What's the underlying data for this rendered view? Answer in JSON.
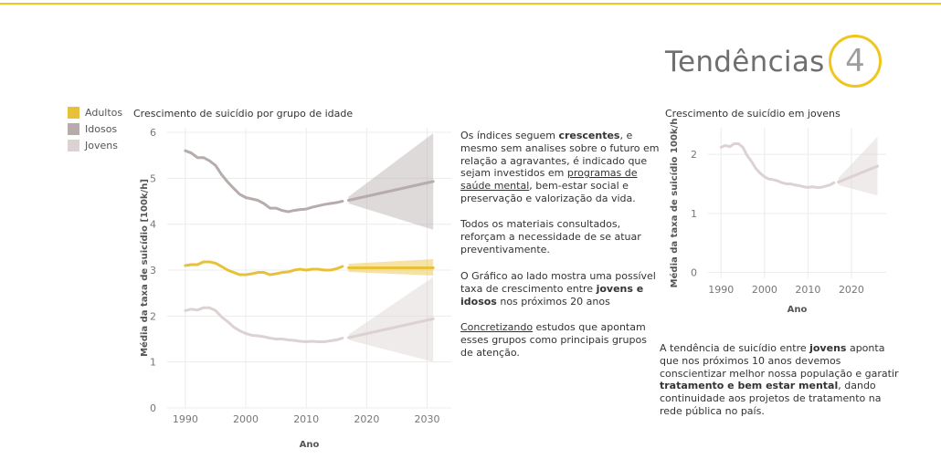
{
  "header": {
    "title": "Tendências",
    "badge": "4",
    "accent": "#f0c61e"
  },
  "legend": [
    {
      "label": "Adultos",
      "color": "#e8c13a"
    },
    {
      "label": "Idosos",
      "color": "#b7acac"
    },
    {
      "label": "Jovens",
      "color": "#dcd2d2"
    }
  ],
  "text_blocks": {
    "p1": [
      {
        "t": "Os índices seguem "
      },
      {
        "t": "crescentes",
        "b": true
      },
      {
        "t": ", e mesmo sem analises sobre o futuro em relação a agravantes, é indicado que sejam investidos em "
      },
      {
        "t": "programas de saúde mental",
        "u": true
      },
      {
        "t": ", bem-estar social e preservação e valorização da vida."
      }
    ],
    "p2": [
      {
        "t": "Todos os materiais consultados, reforçam a necessidade de se atuar preventivamente."
      }
    ],
    "p3": [
      {
        "t": "O Gráfico ao lado mostra uma possível taxa de crescimento entre "
      },
      {
        "t": "jovens e idosos",
        "b": true
      },
      {
        "t": " nos próximos 20 anos"
      }
    ],
    "p4": [
      {
        "t": "Concretizando",
        "u": true
      },
      {
        "t": " estudos que apontam esses grupos como principais grupos de atenção."
      }
    ],
    "p5": [
      {
        "t": "A tendência de suicídio entre "
      },
      {
        "t": "jovens",
        "b": true
      },
      {
        "t": " aponta que nos próximos 10 anos devemos conscientizar melhor nossa população e garatir "
      },
      {
        "t": "tratamento e bem estar mental",
        "b": true
      },
      {
        "t": ", dando continuidade aos projetos de tratamento na rede pública no país."
      }
    ]
  },
  "chart_data": [
    {
      "type": "line",
      "title": "Crescimento de suicídio por grupo de idade",
      "xlabel": "Ano",
      "ylabel": "Média da taxa de suicídio [100k/h]",
      "xlim": [
        1987,
        2034
      ],
      "ylim": [
        0,
        6.1
      ],
      "xticks": [
        1990,
        2000,
        2010,
        2020,
        2030
      ],
      "yticks": [
        0,
        1,
        2,
        3,
        4,
        5,
        6
      ],
      "grid": true,
      "legend": "top-left",
      "series": [
        {
          "name": "Idosos",
          "color": "#b7acac",
          "x": [
            1990,
            1991,
            1992,
            1993,
            1994,
            1995,
            1996,
            1997,
            1998,
            1999,
            2000,
            2001,
            2002,
            2003,
            2004,
            2005,
            2006,
            2007,
            2008,
            2009,
            2010,
            2011,
            2012,
            2013,
            2014,
            2015,
            2016
          ],
          "y": [
            5.6,
            5.55,
            5.45,
            5.45,
            5.38,
            5.28,
            5.08,
            4.92,
            4.78,
            4.65,
            4.58,
            4.55,
            4.52,
            4.45,
            4.35,
            4.35,
            4.3,
            4.27,
            4.3,
            4.32,
            4.33,
            4.37,
            4.4,
            4.43,
            4.45,
            4.47,
            4.5
          ],
          "forecast": {
            "x": [
              2017,
              2031
            ],
            "y": [
              4.52,
              4.93
            ],
            "lower": [
              4.45,
              3.88
            ],
            "upper": [
              4.6,
              5.98
            ]
          }
        },
        {
          "name": "Adultos",
          "color": "#e8c13a",
          "x": [
            1990,
            1991,
            1992,
            1993,
            1994,
            1995,
            1996,
            1997,
            1998,
            1999,
            2000,
            2001,
            2002,
            2003,
            2004,
            2005,
            2006,
            2007,
            2008,
            2009,
            2010,
            2011,
            2012,
            2013,
            2014,
            2015,
            2016
          ],
          "y": [
            3.1,
            3.12,
            3.12,
            3.18,
            3.18,
            3.15,
            3.08,
            3.0,
            2.95,
            2.9,
            2.9,
            2.92,
            2.95,
            2.95,
            2.9,
            2.92,
            2.95,
            2.96,
            3.0,
            3.02,
            3.0,
            3.02,
            3.02,
            3.0,
            3.0,
            3.03,
            3.08
          ],
          "forecast": {
            "x": [
              2017,
              2031
            ],
            "y": [
              3.05,
              3.05
            ],
            "lower": [
              2.96,
              2.88
            ],
            "upper": [
              3.14,
              3.24
            ]
          }
        },
        {
          "name": "Jovens",
          "color": "#dcd2d2",
          "x": [
            1990,
            1991,
            1992,
            1993,
            1994,
            1995,
            1996,
            1997,
            1998,
            1999,
            2000,
            2001,
            2002,
            2003,
            2004,
            2005,
            2006,
            2007,
            2008,
            2009,
            2010,
            2011,
            2012,
            2013,
            2014,
            2015,
            2016
          ],
          "y": [
            2.12,
            2.15,
            2.13,
            2.18,
            2.18,
            2.12,
            1.98,
            1.88,
            1.76,
            1.68,
            1.62,
            1.58,
            1.57,
            1.55,
            1.52,
            1.5,
            1.5,
            1.48,
            1.47,
            1.45,
            1.44,
            1.45,
            1.44,
            1.44,
            1.46,
            1.48,
            1.52
          ],
          "forecast": {
            "x": [
              2017,
              2031
            ],
            "y": [
              1.53,
              1.94
            ],
            "lower": [
              1.48,
              1.0
            ],
            "upper": [
              1.6,
              2.85
            ]
          }
        }
      ]
    },
    {
      "type": "line",
      "title": "Crescimento de suicídio em jovens",
      "xlabel": "Ano",
      "ylabel": "Média da taxa de suicídio 100k/h",
      "xlim": [
        1987,
        2028
      ],
      "ylim": [
        -0.1,
        2.45
      ],
      "xticks": [
        1990,
        2000,
        2010,
        2020
      ],
      "yticks": [
        0,
        1,
        2
      ],
      "grid": true,
      "series": [
        {
          "name": "Jovens",
          "color": "#dcd2d2",
          "x": [
            1990,
            1991,
            1992,
            1993,
            1994,
            1995,
            1996,
            1997,
            1998,
            1999,
            2000,
            2001,
            2002,
            2003,
            2004,
            2005,
            2006,
            2007,
            2008,
            2009,
            2010,
            2011,
            2012,
            2013,
            2014,
            2015,
            2016
          ],
          "y": [
            2.12,
            2.15,
            2.13,
            2.18,
            2.18,
            2.12,
            1.98,
            1.88,
            1.76,
            1.68,
            1.62,
            1.58,
            1.57,
            1.55,
            1.52,
            1.5,
            1.5,
            1.48,
            1.47,
            1.45,
            1.44,
            1.45,
            1.44,
            1.44,
            1.46,
            1.48,
            1.52
          ],
          "forecast": {
            "x": [
              2017,
              2026
            ],
            "y": [
              1.53,
              1.8
            ],
            "lower": [
              1.48,
              1.3
            ],
            "upper": [
              1.6,
              2.3
            ]
          }
        }
      ]
    }
  ]
}
